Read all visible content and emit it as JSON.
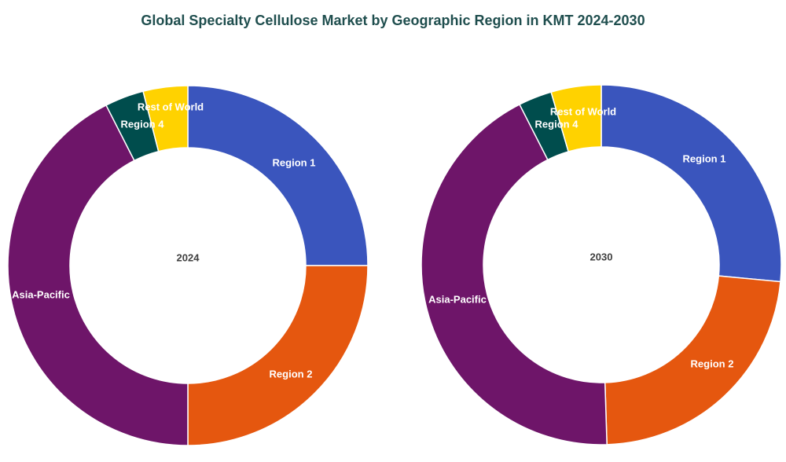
{
  "title": "Global Specialty Cellulose Market by Geographic Region in KMT 2024-2030",
  "chart_data": [
    {
      "type": "donut",
      "center_label": "2024",
      "categories": [
        "Region 1",
        "Region 2",
        "Asia-Pacific",
        "Region 4",
        "Rest of World"
      ],
      "values": [
        25,
        25,
        42.5,
        3.5,
        4
      ],
      "colors": [
        "#3a55bd",
        "#e5570f",
        "#6e1569",
        "#004d4d",
        "#ffd200"
      ]
    },
    {
      "type": "donut",
      "center_label": "2030",
      "categories": [
        "Region 1",
        "Region 2",
        "Asia-Pacific",
        "Region 4",
        "Rest of World"
      ],
      "values": [
        26.5,
        23,
        43,
        3,
        4.5
      ],
      "colors": [
        "#3a55bd",
        "#e5570f",
        "#6e1569",
        "#004d4d",
        "#ffd200"
      ]
    }
  ]
}
